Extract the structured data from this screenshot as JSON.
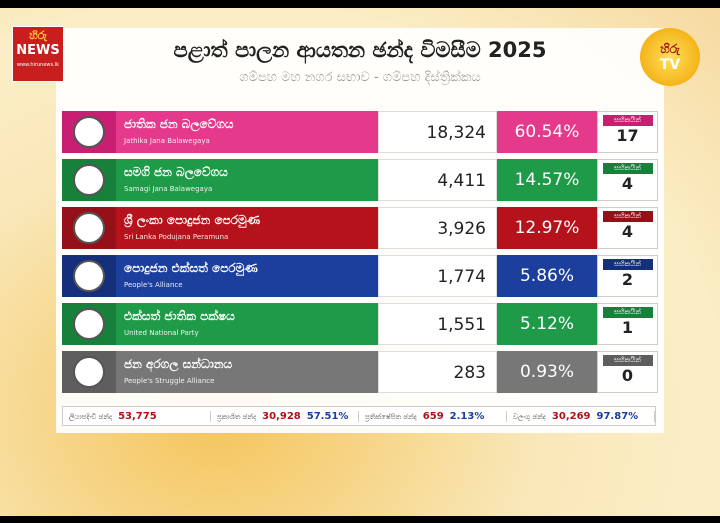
{
  "header": {
    "title": "පළාත් පාලන ආයතන ඡන්ද විමසීම 2025",
    "subtitle": "ගම්පහ මහ නගර සභාව - ගම්පහ දිස්ත්‍රික්කය"
  },
  "logos": {
    "left_top": "හිරු",
    "left_main": "NEWS",
    "left_url": "www.hirunews.lk",
    "right_top": "හිරු",
    "right_main": "TV"
  },
  "seats_label": "සභිකයින්",
  "rows": [
    {
      "name": "ජාතික ජන බලවේගය",
      "name_en": "Jathika Jana Balawegaya",
      "votes": "18,324",
      "percent": "60.54%",
      "seats": "17"
    },
    {
      "name": "සමගි ජන බලවේගය",
      "name_en": "Samagi Jana Balawegaya",
      "votes": "4,411",
      "percent": "14.57%",
      "seats": "4"
    },
    {
      "name": "ශ්‍රී ලංකා පොදුජන පෙරමුණ",
      "name_en": "Sri Lanka Podujana Peramuna",
      "votes": "3,926",
      "percent": "12.97%",
      "seats": "4"
    },
    {
      "name": "පොදුජන එක්සත් පෙරමුණ",
      "name_en": "People's Alliance",
      "votes": "1,774",
      "percent": "5.86%",
      "seats": "2"
    },
    {
      "name": "එක්සත් ජාතික පක්ෂය",
      "name_en": "United National Party",
      "votes": "1,551",
      "percent": "5.12%",
      "seats": "1"
    },
    {
      "name": "ජන අරගල සන්ධානය",
      "name_en": "People's Struggle Alliance",
      "votes": "283",
      "percent": "0.93%",
      "seats": "0"
    }
  ],
  "footer": [
    {
      "label": "ලියාපදිංචි ඡන්ද",
      "count": "53,775"
    },
    {
      "label": "ප්‍රකාශිත ඡන්ද",
      "count": "30,928",
      "percent": "57.51%"
    },
    {
      "label": "ප්‍රතික්ෂේපිත ඡන්ද",
      "count": "659",
      "percent": "2.13%"
    },
    {
      "label": "වලංගු ඡන්ද",
      "count": "30,269",
      "percent": "97.87%"
    }
  ]
}
